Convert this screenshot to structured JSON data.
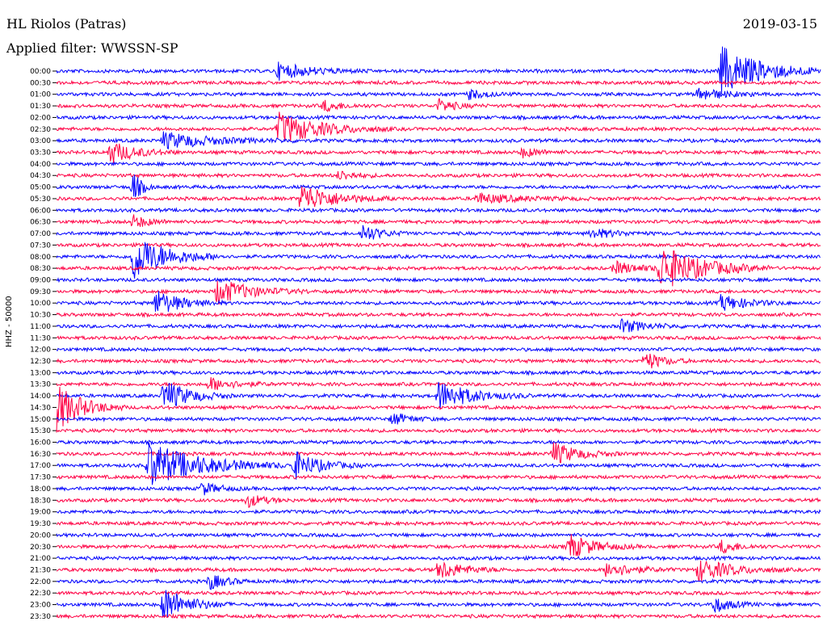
{
  "header": {
    "station": "HL Riolos (Patras)",
    "date": "2019-03-15",
    "filter": "Applied filter: WWSSN-SP"
  },
  "chart_data": {
    "type": "line",
    "title": "HL Riolos (Patras)",
    "ylabel": "HHZ - 50000",
    "colors": {
      "even_hour": "#0000ff",
      "half_hour": "#ff0044",
      "axis": "#000000"
    },
    "row_labels": [
      "00:00",
      "00:30",
      "01:00",
      "01:30",
      "02:00",
      "02:30",
      "03:00",
      "03:30",
      "04:00",
      "04:30",
      "05:00",
      "05:30",
      "06:00",
      "06:30",
      "07:00",
      "07:30",
      "08:00",
      "08:30",
      "09:00",
      "09:30",
      "10:00",
      "10:30",
      "11:00",
      "11:30",
      "12:00",
      "12:30",
      "13:00",
      "13:30",
      "14:00",
      "14:30",
      "15:00",
      "15:30",
      "16:00",
      "16:30",
      "17:00",
      "17:30",
      "18:00",
      "18:30",
      "19:00",
      "19:30",
      "20:00",
      "20:30",
      "21:00",
      "21:30",
      "22:00",
      "22:30",
      "23:00",
      "23:30"
    ],
    "row_duration_minutes": 30,
    "events": [
      {
        "row": "00:00",
        "t": 0.29,
        "amp": 10,
        "dur": 0.04
      },
      {
        "row": "00:00",
        "t": 0.87,
        "amp": 30,
        "dur": 0.05
      },
      {
        "row": "01:00",
        "t": 0.54,
        "amp": 6,
        "dur": 0.02
      },
      {
        "row": "01:00",
        "t": 0.84,
        "amp": 8,
        "dur": 0.03
      },
      {
        "row": "01:30",
        "t": 0.35,
        "amp": 7,
        "dur": 0.02
      },
      {
        "row": "01:30",
        "t": 0.5,
        "amp": 8,
        "dur": 0.02
      },
      {
        "row": "02:30",
        "t": 0.29,
        "amp": 20,
        "dur": 0.05
      },
      {
        "row": "03:00",
        "t": 0.14,
        "amp": 10,
        "dur": 0.06
      },
      {
        "row": "03:30",
        "t": 0.07,
        "amp": 14,
        "dur": 0.03
      },
      {
        "row": "03:30",
        "t": 0.61,
        "amp": 6,
        "dur": 0.02
      },
      {
        "row": "04:30",
        "t": 0.37,
        "amp": 6,
        "dur": 0.02
      },
      {
        "row": "05:00",
        "t": 0.1,
        "amp": 20,
        "dur": 0.01
      },
      {
        "row": "05:30",
        "t": 0.32,
        "amp": 18,
        "dur": 0.04
      },
      {
        "row": "05:30",
        "t": 0.55,
        "amp": 6,
        "dur": 0.05
      },
      {
        "row": "06:30",
        "t": 0.1,
        "amp": 8,
        "dur": 0.02
      },
      {
        "row": "07:00",
        "t": 0.4,
        "amp": 12,
        "dur": 0.02
      },
      {
        "row": "07:00",
        "t": 0.7,
        "amp": 6,
        "dur": 0.03
      },
      {
        "row": "08:00",
        "t": 0.1,
        "amp": 30,
        "dur": 0.04
      },
      {
        "row": "08:30",
        "t": 0.73,
        "amp": 8,
        "dur": 0.03
      },
      {
        "row": "08:30",
        "t": 0.79,
        "amp": 28,
        "dur": 0.05
      },
      {
        "row": "09:30",
        "t": 0.21,
        "amp": 16,
        "dur": 0.04
      },
      {
        "row": "10:00",
        "t": 0.13,
        "amp": 16,
        "dur": 0.03
      },
      {
        "row": "10:00",
        "t": 0.87,
        "amp": 10,
        "dur": 0.03
      },
      {
        "row": "11:00",
        "t": 0.74,
        "amp": 8,
        "dur": 0.03
      },
      {
        "row": "12:30",
        "t": 0.77,
        "amp": 12,
        "dur": 0.02
      },
      {
        "row": "13:30",
        "t": 0.2,
        "amp": 8,
        "dur": 0.03
      },
      {
        "row": "14:00",
        "t": 0.14,
        "amp": 20,
        "dur": 0.03
      },
      {
        "row": "14:00",
        "t": 0.5,
        "amp": 18,
        "dur": 0.04
      },
      {
        "row": "14:30",
        "t": 0.0,
        "amp": 30,
        "dur": 0.03
      },
      {
        "row": "15:00",
        "t": 0.44,
        "amp": 8,
        "dur": 0.02
      },
      {
        "row": "16:30",
        "t": 0.65,
        "amp": 14,
        "dur": 0.03
      },
      {
        "row": "17:00",
        "t": 0.12,
        "amp": 30,
        "dur": 0.06
      },
      {
        "row": "17:00",
        "t": 0.31,
        "amp": 18,
        "dur": 0.03
      },
      {
        "row": "18:00",
        "t": 0.19,
        "amp": 8,
        "dur": 0.02
      },
      {
        "row": "18:30",
        "t": 0.25,
        "amp": 8,
        "dur": 0.02
      },
      {
        "row": "20:30",
        "t": 0.67,
        "amp": 16,
        "dur": 0.03
      },
      {
        "row": "20:30",
        "t": 0.87,
        "amp": 8,
        "dur": 0.02
      },
      {
        "row": "21:30",
        "t": 0.5,
        "amp": 12,
        "dur": 0.03
      },
      {
        "row": "21:30",
        "t": 0.72,
        "amp": 10,
        "dur": 0.03
      },
      {
        "row": "21:30",
        "t": 0.84,
        "amp": 14,
        "dur": 0.04
      },
      {
        "row": "22:00",
        "t": 0.2,
        "amp": 10,
        "dur": 0.02
      },
      {
        "row": "23:00",
        "t": 0.14,
        "amp": 22,
        "dur": 0.03
      },
      {
        "row": "23:00",
        "t": 0.86,
        "amp": 10,
        "dur": 0.02
      }
    ]
  }
}
